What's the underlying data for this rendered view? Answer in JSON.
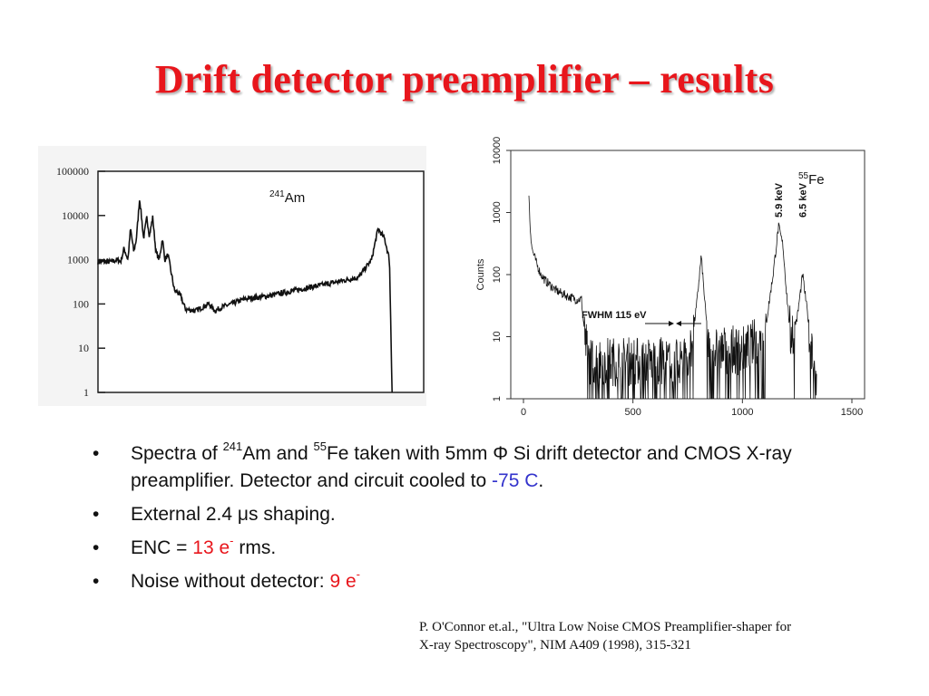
{
  "title": "Drift detector preamplifier – results",
  "chart_data": [
    {
      "type": "line",
      "scale": "log-y",
      "annotation": {
        "sup": "241",
        "text": "Am"
      },
      "y_ticks": [
        "100000",
        "10000",
        "1000",
        "100",
        "10",
        "1"
      ],
      "ylim": [
        1,
        100000
      ],
      "xlim": [
        0,
        1000
      ],
      "series": [
        {
          "x": [
            0,
            40,
            60,
            70,
            80,
            92,
            100,
            110,
            118,
            128,
            140,
            150,
            158,
            168,
            178,
            188,
            198,
            205,
            215,
            225,
            235,
            245,
            255,
            262,
            270,
            300,
            340,
            360,
            380,
            410,
            450,
            520,
            600,
            700,
            800,
            840,
            860,
            880,
            895,
            903
          ],
          "y": [
            900,
            900,
            1000,
            900,
            1800,
            1000,
            5000,
            1500,
            3000,
            25000,
            3000,
            9000,
            3500,
            9000,
            1500,
            1000,
            3000,
            1000,
            1300,
            500,
            200,
            180,
            150,
            100,
            75,
            70,
            100,
            70,
            85,
            100,
            130,
            150,
            200,
            280,
            400,
            1000,
            5000,
            3000,
            1000,
            1
          ]
        }
      ]
    },
    {
      "type": "line",
      "scale": "log-y",
      "annotation": {
        "sup": "55",
        "text": "Fe"
      },
      "ylabel": "Counts",
      "y_ticks": [
        "1",
        "10",
        "100",
        "1000",
        "10000"
      ],
      "x_ticks": [
        "0",
        "500",
        "1000",
        "1500"
      ],
      "ylim": [
        1,
        10000
      ],
      "xlim": [
        0,
        1500
      ],
      "peaks": [
        "5.9 keV",
        "6.5 keV"
      ],
      "fwhm_label": "FWHM 115 eV",
      "series": [
        {
          "x": [
            25,
            30,
            40,
            60,
            80,
            100,
            150,
            200,
            240,
            265,
            280,
            300,
            400,
            500,
            600,
            700,
            760,
            790,
            812,
            830,
            850,
            870,
            900,
            1000,
            1100,
            1140,
            1165,
            1185,
            1200,
            1220,
            1250,
            1275,
            1300,
            1320,
            1340
          ],
          "y": [
            2000,
            600,
            250,
            150,
            100,
            80,
            55,
            45,
            40,
            40,
            10,
            4,
            4,
            4,
            4,
            4,
            5,
            30,
            200,
            30,
            5,
            6,
            6,
            6,
            10,
            100,
            600,
            300,
            60,
            10,
            20,
            100,
            20,
            5,
            1
          ]
        }
      ]
    }
  ],
  "bullets": [
    {
      "p1": "Spectra of ",
      "s1": "241",
      "p2": "Am  and ",
      "s2": "55",
      "p3": "Fe taken with 5mm ",
      "sym": "Φ",
      "p4": " Si drift detector and CMOS X-ray preamplifier. Detector and circuit cooled to ",
      "hl": "-75 C",
      "p5": "."
    },
    {
      "p1": "External 2.4 ",
      "sym": "μ",
      "p2": "s shaping."
    },
    {
      "p1": "ENC = ",
      "hl": "13 e",
      "sup": "-",
      "p2": " rms."
    },
    {
      "p1": "Noise without detector: ",
      "hl": "9 e",
      "sup": "-"
    }
  ],
  "bullet_glyph": "•",
  "reference": {
    "line1": "P. O'Connor et.al., \"Ultra Low Noise CMOS Preamplifier-shaper for",
    "line2": "X-ray Spectroscopy\", NIM A409 (1998), 315-321"
  }
}
